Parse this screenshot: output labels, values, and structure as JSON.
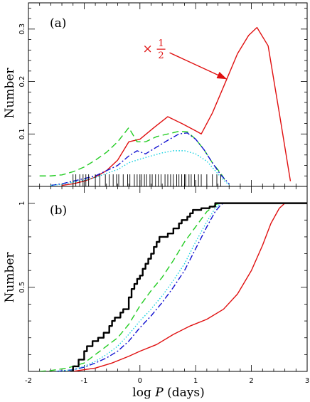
{
  "colors": {
    "red": "#e01010",
    "green": "#22cc22",
    "blue": "#1010d0",
    "cyan": "#10d0e0",
    "black": "#000000"
  },
  "chart_data": [
    {
      "type": "line",
      "panel_label": "(a)",
      "xlabel_main": "log",
      "xlabel_var": "P",
      "xlabel_unit": "(days)",
      "ylabel": "Number",
      "xlim": [
        -2,
        3
      ],
      "ylim": [
        0,
        0.35
      ],
      "x_ticks": [
        "-2",
        "-1",
        "0",
        "1",
        "2",
        "3"
      ],
      "y_ticks": [
        {
          "v": 0.1,
          "label": "0.1"
        },
        {
          "v": 0.2,
          "label": "0.2"
        },
        {
          "v": 0.3,
          "label": "0.3"
        }
      ],
      "annotation": {
        "times": "×",
        "numerator": "1",
        "denominator": "2",
        "x": 0.15,
        "y": 0.263,
        "arrow_to": [
          1.55,
          0.205
        ]
      },
      "series": [
        {
          "style": "solid",
          "color": "red",
          "points": [
            [
              -1.4,
              0.002
            ],
            [
              -1.2,
              0.005
            ],
            [
              -1.0,
              0.01
            ],
            [
              -0.8,
              0.018
            ],
            [
              -0.6,
              0.03
            ],
            [
              -0.4,
              0.05
            ],
            [
              -0.2,
              0.085
            ],
            [
              0.0,
              0.09
            ],
            [
              0.25,
              0.112
            ],
            [
              0.5,
              0.133
            ],
            [
              0.75,
              0.12
            ],
            [
              1.0,
              0.106
            ],
            [
              1.1,
              0.1
            ],
            [
              1.3,
              0.14
            ],
            [
              1.5,
              0.19
            ],
            [
              1.75,
              0.253
            ],
            [
              1.95,
              0.288
            ],
            [
              2.1,
              0.303
            ],
            [
              2.3,
              0.268
            ],
            [
              2.5,
              0.14
            ],
            [
              2.7,
              0.01
            ]
          ]
        },
        {
          "style": "dashed",
          "color": "green",
          "points": [
            [
              -1.8,
              0.02
            ],
            [
              -1.6,
              0.02
            ],
            [
              -1.4,
              0.022
            ],
            [
              -1.2,
              0.028
            ],
            [
              -1.0,
              0.037
            ],
            [
              -0.8,
              0.05
            ],
            [
              -0.6,
              0.065
            ],
            [
              -0.4,
              0.085
            ],
            [
              -0.2,
              0.112
            ],
            [
              -0.05,
              0.085
            ],
            [
              0.1,
              0.085
            ],
            [
              0.3,
              0.095
            ],
            [
              0.5,
              0.1
            ],
            [
              0.7,
              0.105
            ],
            [
              0.85,
              0.104
            ],
            [
              1.0,
              0.09
            ],
            [
              1.15,
              0.07
            ],
            [
              1.3,
              0.045
            ],
            [
              1.45,
              0.025
            ],
            [
              1.55,
              0.008
            ]
          ]
        },
        {
          "style": "dashdot",
          "color": "blue",
          "points": [
            [
              -1.6,
              0.002
            ],
            [
              -1.4,
              0.005
            ],
            [
              -1.2,
              0.01
            ],
            [
              -1.0,
              0.015
            ],
            [
              -0.8,
              0.02
            ],
            [
              -0.6,
              0.03
            ],
            [
              -0.4,
              0.04
            ],
            [
              -0.2,
              0.058
            ],
            [
              -0.05,
              0.068
            ],
            [
              0.1,
              0.062
            ],
            [
              0.3,
              0.075
            ],
            [
              0.5,
              0.088
            ],
            [
              0.7,
              0.1
            ],
            [
              0.85,
              0.102
            ],
            [
              1.0,
              0.09
            ],
            [
              1.15,
              0.07
            ],
            [
              1.3,
              0.045
            ],
            [
              1.45,
              0.022
            ],
            [
              1.6,
              0.005
            ]
          ]
        },
        {
          "style": "dotted",
          "color": "cyan",
          "points": [
            [
              -1.6,
              0.002
            ],
            [
              -1.4,
              0.004
            ],
            [
              -1.2,
              0.008
            ],
            [
              -1.0,
              0.012
            ],
            [
              -0.8,
              0.017
            ],
            [
              -0.6,
              0.025
            ],
            [
              -0.4,
              0.032
            ],
            [
              -0.2,
              0.045
            ],
            [
              0.0,
              0.052
            ],
            [
              0.2,
              0.058
            ],
            [
              0.4,
              0.064
            ],
            [
              0.6,
              0.068
            ],
            [
              0.8,
              0.068
            ],
            [
              1.0,
              0.062
            ],
            [
              1.2,
              0.048
            ],
            [
              1.35,
              0.03
            ],
            [
              1.5,
              0.012
            ],
            [
              1.6,
              0.003
            ]
          ]
        }
      ],
      "rug_x": [
        -1.2,
        -1.15,
        -1.08,
        -1.02,
        -0.97,
        -0.92,
        -0.8,
        -0.72,
        -0.62,
        -0.55,
        -0.48,
        -0.42,
        -0.38,
        -0.3,
        -0.22,
        -0.18,
        -0.1,
        -0.05,
        0.0,
        0.03,
        0.08,
        0.12,
        0.18,
        0.22,
        0.28,
        0.33,
        0.38,
        0.45,
        0.5,
        0.55,
        0.6,
        0.66,
        0.7,
        0.75,
        0.8,
        0.82,
        0.88,
        0.92,
        0.98,
        1.05,
        1.1,
        1.2,
        1.3,
        1.38,
        1.45
      ]
    },
    {
      "type": "line",
      "panel_label": "(b)",
      "ylabel": "Number",
      "xlim": [
        -2,
        3
      ],
      "ylim": [
        0,
        1.1
      ],
      "x_ticks": [
        "-2",
        "-1",
        "0",
        "1",
        "2",
        "3"
      ],
      "y_ticks": [
        {
          "v": 0.5,
          "label": "0.5"
        },
        {
          "v": 1.0,
          "label": "1"
        }
      ],
      "series": [
        {
          "style": "solid",
          "color": "red",
          "points": [
            [
              -1.2,
              0.0
            ],
            [
              -0.8,
              0.02
            ],
            [
              -0.5,
              0.05
            ],
            [
              -0.2,
              0.09
            ],
            [
              0.0,
              0.12
            ],
            [
              0.3,
              0.16
            ],
            [
              0.6,
              0.22
            ],
            [
              0.9,
              0.27
            ],
            [
              1.2,
              0.31
            ],
            [
              1.5,
              0.37
            ],
            [
              1.75,
              0.46
            ],
            [
              2.0,
              0.6
            ],
            [
              2.2,
              0.75
            ],
            [
              2.35,
              0.88
            ],
            [
              2.5,
              0.97
            ],
            [
              2.6,
              1.0
            ],
            [
              3.0,
              1.0
            ]
          ]
        },
        {
          "style": "dashed",
          "color": "green",
          "points": [
            [
              -1.8,
              0.0
            ],
            [
              -1.6,
              0.005
            ],
            [
              -1.3,
              0.02
            ],
            [
              -1.0,
              0.05
            ],
            [
              -0.8,
              0.1
            ],
            [
              -0.6,
              0.15
            ],
            [
              -0.4,
              0.2
            ],
            [
              -0.2,
              0.28
            ],
            [
              0.0,
              0.39
            ],
            [
              0.2,
              0.48
            ],
            [
              0.4,
              0.56
            ],
            [
              0.6,
              0.66
            ],
            [
              0.8,
              0.77
            ],
            [
              1.0,
              0.86
            ],
            [
              1.2,
              0.95
            ],
            [
              1.35,
              0.99
            ],
            [
              1.45,
              1.0
            ],
            [
              3.0,
              1.0
            ]
          ]
        },
        {
          "style": "dashdot",
          "color": "blue",
          "points": [
            [
              -1.5,
              0.0
            ],
            [
              -1.2,
              0.01
            ],
            [
              -1.0,
              0.025
            ],
            [
              -0.8,
              0.05
            ],
            [
              -0.6,
              0.08
            ],
            [
              -0.4,
              0.12
            ],
            [
              -0.2,
              0.18
            ],
            [
              0.0,
              0.26
            ],
            [
              0.2,
              0.33
            ],
            [
              0.4,
              0.41
            ],
            [
              0.6,
              0.5
            ],
            [
              0.8,
              0.6
            ],
            [
              1.0,
              0.73
            ],
            [
              1.2,
              0.86
            ],
            [
              1.35,
              0.95
            ],
            [
              1.45,
              0.99
            ],
            [
              1.5,
              1.0
            ],
            [
              3.0,
              1.0
            ]
          ]
        },
        {
          "style": "dotted",
          "color": "cyan",
          "points": [
            [
              -1.5,
              0.0
            ],
            [
              -1.2,
              0.01
            ],
            [
              -1.0,
              0.03
            ],
            [
              -0.8,
              0.06
            ],
            [
              -0.6,
              0.1
            ],
            [
              -0.4,
              0.15
            ],
            [
              -0.2,
              0.22
            ],
            [
              0.0,
              0.3
            ],
            [
              0.2,
              0.37
            ],
            [
              0.4,
              0.45
            ],
            [
              0.6,
              0.54
            ],
            [
              0.8,
              0.64
            ],
            [
              1.0,
              0.77
            ],
            [
              1.2,
              0.89
            ],
            [
              1.35,
              0.97
            ],
            [
              1.45,
              1.0
            ],
            [
              3.0,
              1.0
            ]
          ]
        },
        {
          "style": "step",
          "color": "black",
          "points": [
            [
              -1.25,
              0.0
            ],
            [
              -1.2,
              0.03
            ],
            [
              -1.1,
              0.07
            ],
            [
              -1.0,
              0.12
            ],
            [
              -0.95,
              0.15
            ],
            [
              -0.85,
              0.18
            ],
            [
              -0.75,
              0.2
            ],
            [
              -0.65,
              0.23
            ],
            [
              -0.55,
              0.27
            ],
            [
              -0.5,
              0.3
            ],
            [
              -0.45,
              0.32
            ],
            [
              -0.35,
              0.35
            ],
            [
              -0.3,
              0.37
            ],
            [
              -0.2,
              0.44
            ],
            [
              -0.15,
              0.49
            ],
            [
              -0.1,
              0.52
            ],
            [
              -0.05,
              0.55
            ],
            [
              0.0,
              0.57
            ],
            [
              0.05,
              0.61
            ],
            [
              0.1,
              0.64
            ],
            [
              0.15,
              0.67
            ],
            [
              0.2,
              0.7
            ],
            [
              0.25,
              0.74
            ],
            [
              0.3,
              0.77
            ],
            [
              0.35,
              0.8
            ],
            [
              0.5,
              0.82
            ],
            [
              0.6,
              0.85
            ],
            [
              0.7,
              0.88
            ],
            [
              0.75,
              0.9
            ],
            [
              0.85,
              0.92
            ],
            [
              0.9,
              0.94
            ],
            [
              0.95,
              0.96
            ],
            [
              1.1,
              0.97
            ],
            [
              1.25,
              0.98
            ],
            [
              1.35,
              1.0
            ],
            [
              3.0,
              1.0
            ]
          ]
        }
      ]
    }
  ]
}
